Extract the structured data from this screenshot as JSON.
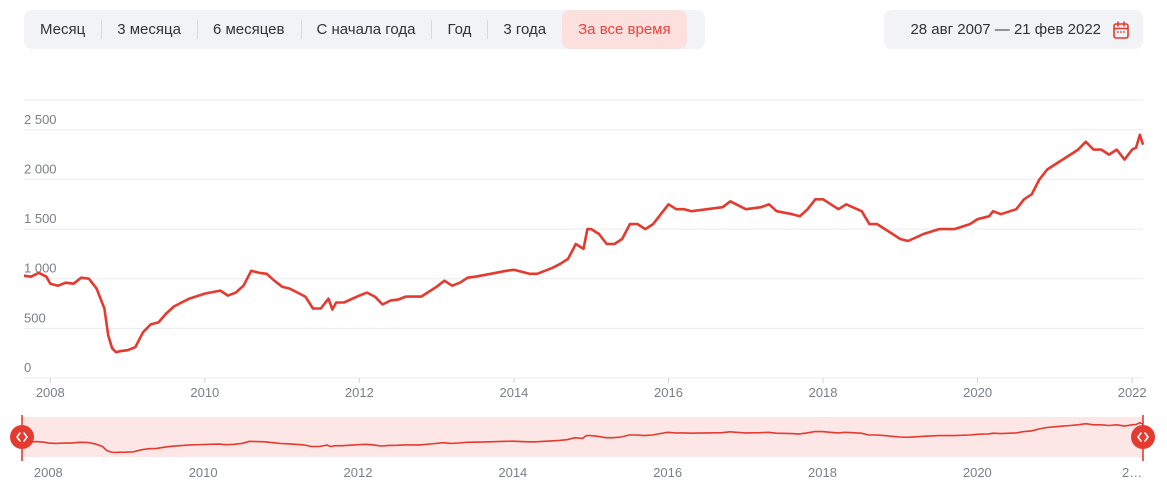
{
  "toolbar": {
    "tabs": [
      {
        "label": "Месяц",
        "active": false
      },
      {
        "label": "3 месяца",
        "active": false
      },
      {
        "label": "6 месяцев",
        "active": false
      },
      {
        "label": "С начала года",
        "active": false
      },
      {
        "label": "Год",
        "active": false
      },
      {
        "label": "3 года",
        "active": false
      },
      {
        "label": "За все время",
        "active": true
      }
    ]
  },
  "date_range": {
    "label": "28 авг 2007 — 21 фев 2022",
    "icon": "calendar-icon"
  },
  "colors": {
    "accent": "#e53a2f",
    "active_tab_bg": "#fbe0de",
    "navigator_fill": "#fde7e6",
    "toolbar_bg": "#f1f3f7"
  },
  "chart_data": {
    "type": "line",
    "title": "",
    "xlabel": "",
    "ylabel": "",
    "x_range": [
      2007.66,
      2022.14
    ],
    "ylim": [
      0,
      2800
    ],
    "y_ticks": [
      {
        "value": 0,
        "label": "0"
      },
      {
        "value": 500,
        "label": "500"
      },
      {
        "value": 1000,
        "label": "1 000"
      },
      {
        "value": 1500,
        "label": "1 500"
      },
      {
        "value": 2000,
        "label": "2 000"
      },
      {
        "value": 2500,
        "label": "2 500"
      }
    ],
    "x_ticks": [
      {
        "value": 2008,
        "label": "2008"
      },
      {
        "value": 2010,
        "label": "2010"
      },
      {
        "value": 2012,
        "label": "2012"
      },
      {
        "value": 2014,
        "label": "2014"
      },
      {
        "value": 2016,
        "label": "2016"
      },
      {
        "value": 2018,
        "label": "2018"
      },
      {
        "value": 2020,
        "label": "2020"
      },
      {
        "value": 2022,
        "label": "2022"
      }
    ],
    "navigator_x_ticks": [
      {
        "value": 2008,
        "label": "2008"
      },
      {
        "value": 2010,
        "label": "2010"
      },
      {
        "value": 2012,
        "label": "2012"
      },
      {
        "value": 2014,
        "label": "2014"
      },
      {
        "value": 2016,
        "label": "2016"
      },
      {
        "value": 2018,
        "label": "2018"
      },
      {
        "value": 2020,
        "label": "2020"
      },
      {
        "value": 2022,
        "label": "2…"
      }
    ],
    "grid": true,
    "series": [
      {
        "x": [
          2007.66,
          2007.75,
          2007.85,
          2007.95,
          2008.0,
          2008.1,
          2008.2,
          2008.3,
          2008.4,
          2008.5,
          2008.6,
          2008.7,
          2008.75,
          2008.8,
          2008.85,
          2008.9,
          2009.0,
          2009.1,
          2009.2,
          2009.3,
          2009.4,
          2009.5,
          2009.6,
          2009.7,
          2009.8,
          2010.0,
          2010.2,
          2010.3,
          2010.4,
          2010.5,
          2010.6,
          2010.7,
          2010.8,
          2010.9,
          2011.0,
          2011.1,
          2011.3,
          2011.4,
          2011.5,
          2011.6,
          2011.65,
          2011.7,
          2011.8,
          2012.0,
          2012.1,
          2012.2,
          2012.3,
          2012.4,
          2012.5,
          2012.6,
          2012.8,
          2013.0,
          2013.1,
          2013.2,
          2013.3,
          2013.4,
          2013.5,
          2013.7,
          2013.9,
          2014.0,
          2014.2,
          2014.3,
          2014.4,
          2014.5,
          2014.6,
          2014.7,
          2014.8,
          2014.9,
          2014.95,
          2015.0,
          2015.1,
          2015.2,
          2015.3,
          2015.4,
          2015.5,
          2015.6,
          2015.7,
          2015.8,
          2015.9,
          2016.0,
          2016.1,
          2016.2,
          2016.3,
          2016.5,
          2016.7,
          2016.8,
          2017.0,
          2017.2,
          2017.3,
          2017.4,
          2017.6,
          2017.7,
          2017.8,
          2017.9,
          2018.0,
          2018.1,
          2018.2,
          2018.3,
          2018.5,
          2018.6,
          2018.7,
          2018.8,
          2018.9,
          2019.0,
          2019.1,
          2019.3,
          2019.5,
          2019.7,
          2019.9,
          2020.0,
          2020.1,
          2020.15,
          2020.2,
          2020.3,
          2020.5,
          2020.6,
          2020.7,
          2020.8,
          2020.9,
          2021.0,
          2021.1,
          2021.2,
          2021.3,
          2021.4,
          2021.5,
          2021.6,
          2021.7,
          2021.8,
          2021.9,
          2022.0,
          2022.05,
          2022.1,
          2022.14
        ],
        "values": [
          1030,
          1020,
          1060,
          1020,
          950,
          930,
          960,
          950,
          1010,
          1000,
          900,
          700,
          430,
          300,
          260,
          270,
          280,
          310,
          460,
          540,
          560,
          650,
          720,
          760,
          800,
          850,
          880,
          830,
          860,
          930,
          1080,
          1060,
          1050,
          980,
          920,
          900,
          820,
          700,
          700,
          800,
          690,
          760,
          760,
          830,
          860,
          820,
          740,
          780,
          790,
          820,
          820,
          920,
          980,
          930,
          960,
          1010,
          1020,
          1050,
          1080,
          1090,
          1050,
          1050,
          1080,
          1110,
          1150,
          1200,
          1350,
          1300,
          1500,
          1500,
          1450,
          1350,
          1350,
          1400,
          1550,
          1550,
          1500,
          1550,
          1650,
          1750,
          1700,
          1700,
          1680,
          1700,
          1720,
          1780,
          1700,
          1720,
          1750,
          1680,
          1650,
          1630,
          1700,
          1800,
          1800,
          1750,
          1700,
          1750,
          1680,
          1550,
          1550,
          1500,
          1450,
          1400,
          1380,
          1450,
          1500,
          1500,
          1550,
          1600,
          1620,
          1630,
          1680,
          1650,
          1700,
          1800,
          1850,
          2000,
          2100,
          2150,
          2200,
          2250,
          2300,
          2380,
          2300,
          2300,
          2250,
          2300,
          2200,
          2300,
          2320,
          2450,
          2350
        ]
      }
    ]
  }
}
